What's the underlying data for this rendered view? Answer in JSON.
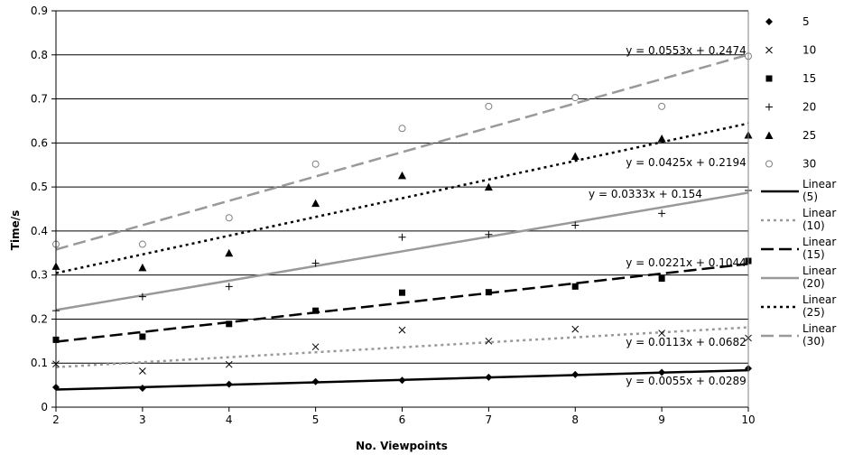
{
  "chart_data": {
    "type": "scatter",
    "title": "",
    "xlabel": "No. Viewpoints",
    "ylabel": "Time/s",
    "xlim": [
      2,
      10
    ],
    "ylim": [
      0,
      0.9
    ],
    "x_ticks": [
      "2",
      "3",
      "4",
      "5",
      "6",
      "7",
      "8",
      "9",
      "10"
    ],
    "y_ticks": [
      "0",
      "0.1",
      "0.2",
      "0.3",
      "0.4",
      "0.5",
      "0.6",
      "0.7",
      "0.8",
      "0.9"
    ],
    "grid": "horizontal",
    "legend_position": "right",
    "series": [
      {
        "name": "5",
        "marker": "diamond",
        "color": "#000000",
        "x": [
          2,
          3,
          4,
          5,
          6,
          7,
          8,
          9,
          10
        ],
        "values": [
          0.045,
          0.043,
          0.052,
          0.058,
          0.061,
          0.068,
          0.074,
          0.079,
          0.088
        ]
      },
      {
        "name": "10",
        "marker": "x",
        "color": "#000000",
        "x": [
          2,
          3,
          4,
          5,
          6,
          7,
          8,
          9,
          10
        ],
        "values": [
          0.098,
          0.082,
          0.097,
          0.137,
          0.175,
          0.15,
          0.177,
          0.168,
          0.157
        ]
      },
      {
        "name": "15",
        "marker": "square",
        "color": "#000000",
        "x": [
          2,
          3,
          4,
          5,
          6,
          7,
          8,
          9,
          10
        ],
        "values": [
          0.153,
          0.16,
          0.189,
          0.219,
          0.26,
          0.261,
          0.274,
          0.292,
          0.332
        ]
      },
      {
        "name": "20",
        "marker": "plus",
        "color": "#000000",
        "x": [
          2,
          3,
          4,
          5,
          6,
          7,
          8,
          9,
          10
        ],
        "values": [
          0.219,
          0.251,
          0.274,
          0.327,
          0.386,
          0.392,
          0.413,
          0.44,
          0.492
        ]
      },
      {
        "name": "25",
        "marker": "triangle",
        "color": "#000000",
        "x": [
          2,
          3,
          4,
          5,
          6,
          7,
          8,
          9,
          10
        ],
        "values": [
          0.32,
          0.317,
          0.35,
          0.463,
          0.526,
          0.5,
          0.57,
          0.61,
          0.618
        ]
      },
      {
        "name": "30",
        "marker": "circle",
        "color": "#808080",
        "x": [
          2,
          3,
          4,
          5,
          6,
          7,
          8,
          9,
          10
        ],
        "values": [
          0.37,
          0.37,
          0.43,
          0.552,
          0.633,
          0.683,
          0.703,
          0.683,
          0.797
        ]
      }
    ],
    "trendlines": [
      {
        "name": "Linear (5)",
        "slope": 0.0055,
        "intercept": 0.0289,
        "equation": "y = 0.0055x + 0.0289",
        "color": "#000000",
        "dash": "solid"
      },
      {
        "name": "Linear (10)",
        "slope": 0.0113,
        "intercept": 0.0682,
        "equation": "y = 0.0113x + 0.0682",
        "color": "#999999",
        "dash": "dotted"
      },
      {
        "name": "Linear (15)",
        "slope": 0.0221,
        "intercept": 0.1044,
        "equation": "y = 0.0221x + 0.1044",
        "color": "#000000",
        "dash": "dashed"
      },
      {
        "name": "Linear (20)",
        "slope": 0.0333,
        "intercept": 0.154,
        "equation": "y = 0.0333x + 0.154",
        "color": "#999999",
        "dash": "solid"
      },
      {
        "name": "Linear (25)",
        "slope": 0.0425,
        "intercept": 0.2194,
        "equation": "y = 0.0425x + 0.2194",
        "color": "#000000",
        "dash": "dotted"
      },
      {
        "name": "Linear (30)",
        "slope": 0.0553,
        "intercept": 0.2474,
        "equation": "y = 0.0553x + 0.2474",
        "color": "#999999",
        "dash": "dashed"
      }
    ]
  }
}
